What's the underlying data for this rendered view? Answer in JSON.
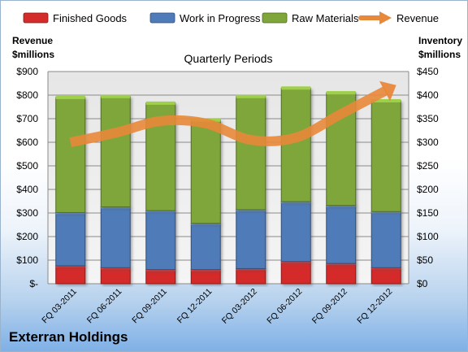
{
  "company": "Exterran Holdings",
  "chart_data": {
    "type": "bar",
    "stacked": true,
    "title": "Quarterly Periods",
    "left_axis_label_line1": "Revenue",
    "left_axis_label_line2": "$millions",
    "right_axis_label_line1": "Inventory",
    "right_axis_label_line2": "$millions",
    "left_ylim": [
      0,
      900
    ],
    "right_ylim": [
      0,
      450
    ],
    "left_ticks": [
      "$-",
      "$100",
      "$200",
      "$300",
      "$400",
      "$500",
      "$600",
      "$700",
      "$800",
      "$900"
    ],
    "right_ticks": [
      "$0",
      "$50",
      "$100",
      "$150",
      "$200",
      "$250",
      "$300",
      "$350",
      "$400",
      "$450"
    ],
    "categories": [
      "FQ 03-2011",
      "FQ 06-2011",
      "FQ 09-2011",
      "FQ 12-2011",
      "FQ 03-2012",
      "FQ 06-2012",
      "FQ 09-2012",
      "FQ 12-2012"
    ],
    "series": [
      {
        "name": "Finished Goods",
        "axis": "right",
        "color": "#d42b2b",
        "values": [
          38,
          34,
          30,
          30,
          32,
          47,
          43,
          34
        ]
      },
      {
        "name": "Work in Progress",
        "axis": "right",
        "color": "#4f7bb8",
        "values": [
          113,
          129,
          125,
          98,
          125,
          127,
          123,
          119
        ]
      },
      {
        "name": "Raw Materials",
        "axis": "right",
        "color": "#7fa63a",
        "values": [
          244,
          234,
          228,
          219,
          240,
          241,
          239,
          235
        ]
      },
      {
        "name": "Revenue",
        "axis": "left",
        "type": "line",
        "color": "#e8883a",
        "values": [
          600,
          640,
          690,
          680,
          610,
          620,
          720,
          820
        ]
      }
    ],
    "legend_position": "top",
    "grid": true
  }
}
